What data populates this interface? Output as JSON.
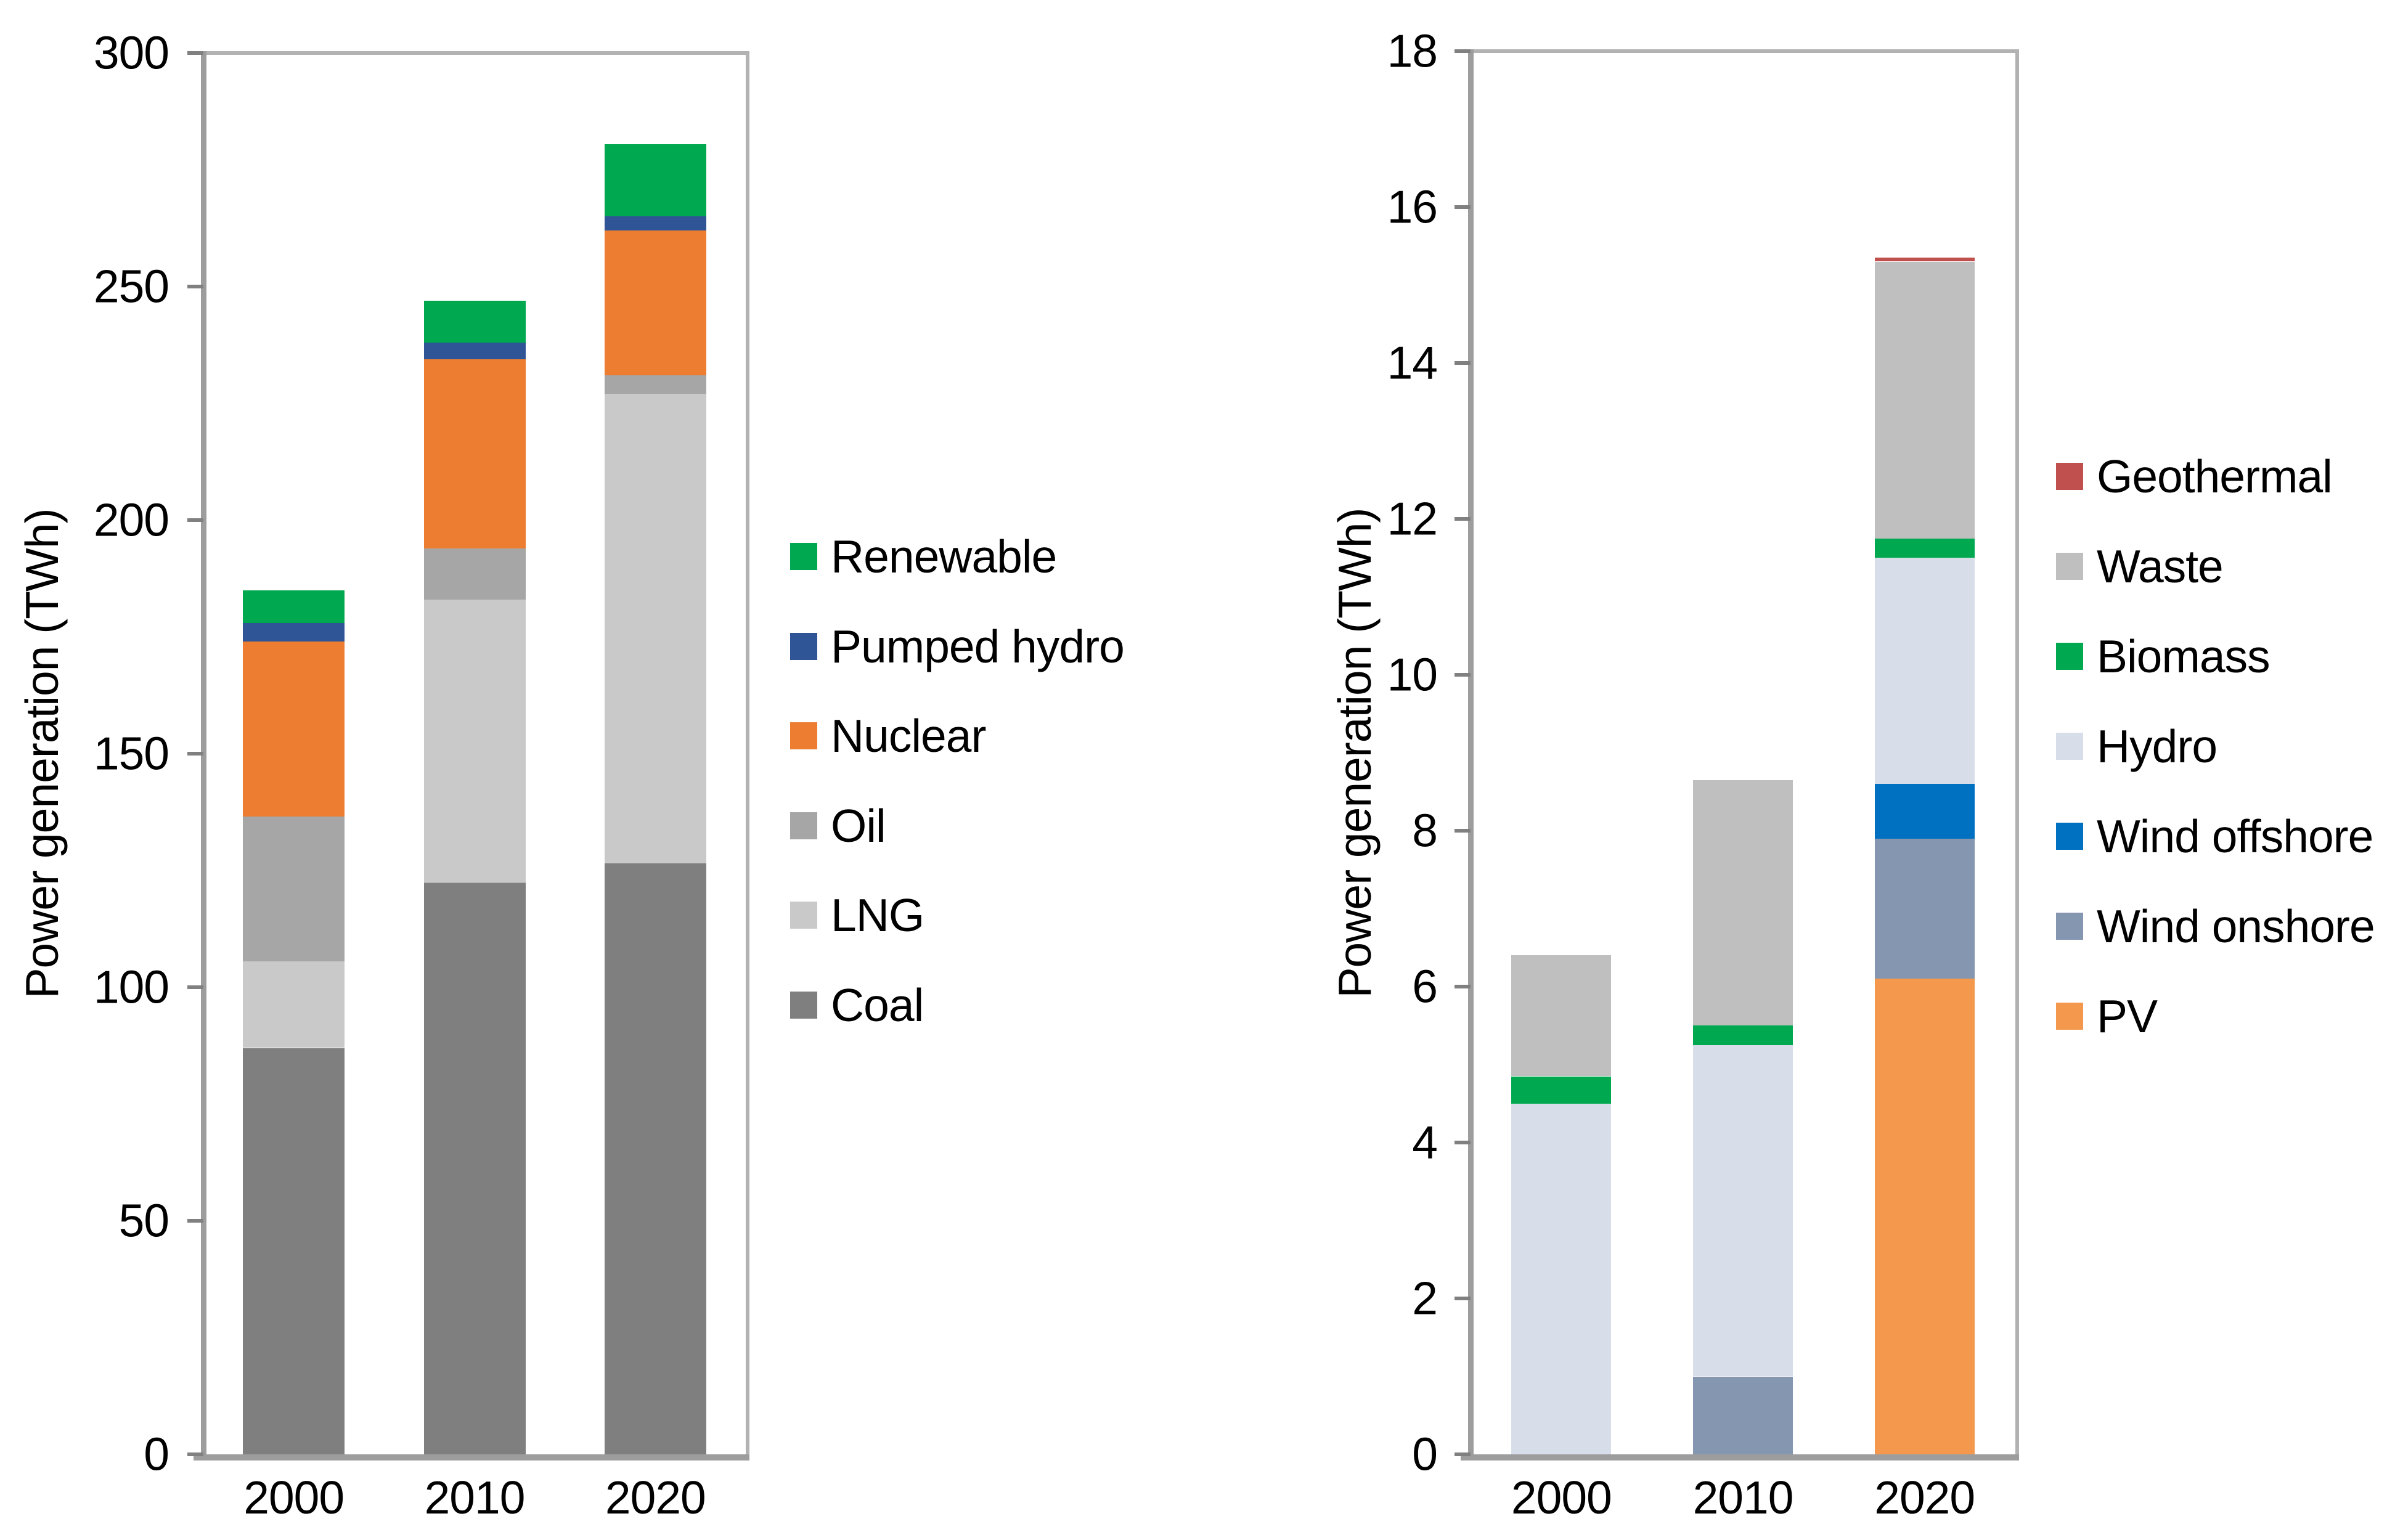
{
  "page": {
    "background": "#ffffff"
  },
  "chart_data": [
    {
      "type": "bar",
      "stacked": true,
      "title": "",
      "xlabel": "",
      "ylabel": "Power generation (TWh)",
      "ylim": [
        0,
        300
      ],
      "ytick_step": 50,
      "grid": false,
      "legend_position": "right",
      "categories": [
        "2000",
        "2010",
        "2020"
      ],
      "series": [
        {
          "name": "Coal",
          "color": "#7f7f7f",
          "values": [
            87,
            122.5,
            126.5
          ]
        },
        {
          "name": "LNG",
          "color": "#c9c9c9",
          "values": [
            18.5,
            60.5,
            100.5
          ]
        },
        {
          "name": "Oil",
          "color": "#a6a6a6",
          "values": [
            31,
            11,
            4
          ]
        },
        {
          "name": "Nuclear",
          "color": "#ed7d31",
          "values": [
            37.5,
            40.5,
            31
          ]
        },
        {
          "name": "Pumped hydro",
          "color": "#2f5597",
          "values": [
            4,
            3.5,
            3
          ]
        },
        {
          "name": "Renewable",
          "color": "#00a84f",
          "values": [
            7,
            9,
            15.5
          ]
        }
      ]
    },
    {
      "type": "bar",
      "stacked": true,
      "title": "",
      "xlabel": "",
      "ylabel": "Power generation (TWh)",
      "ylim": [
        0,
        18
      ],
      "ytick_step": 2,
      "grid": false,
      "legend_position": "right",
      "categories": [
        "2000",
        "2010",
        "2020"
      ],
      "series": [
        {
          "name": "PV",
          "color": "#f4984e",
          "values": [
            0,
            0,
            6.1
          ]
        },
        {
          "name": "Wind onshore",
          "color": "#8496b0",
          "values": [
            0,
            1.0,
            1.8
          ]
        },
        {
          "name": "Wind offshore",
          "color": "#0070c0",
          "values": [
            0,
            0,
            0.7
          ]
        },
        {
          "name": "Hydro",
          "color": "#d8dee9",
          "values": [
            4.5,
            4.25,
            2.9
          ]
        },
        {
          "name": "Biomass",
          "color": "#00a84f",
          "values": [
            0.35,
            0.25,
            0.25
          ]
        },
        {
          "name": "Waste",
          "color": "#bfbfbf",
          "values": [
            1.55,
            3.15,
            3.55
          ]
        },
        {
          "name": "Geothermal",
          "color": "#c0504d",
          "values": [
            0,
            0,
            0.05
          ]
        }
      ]
    }
  ]
}
